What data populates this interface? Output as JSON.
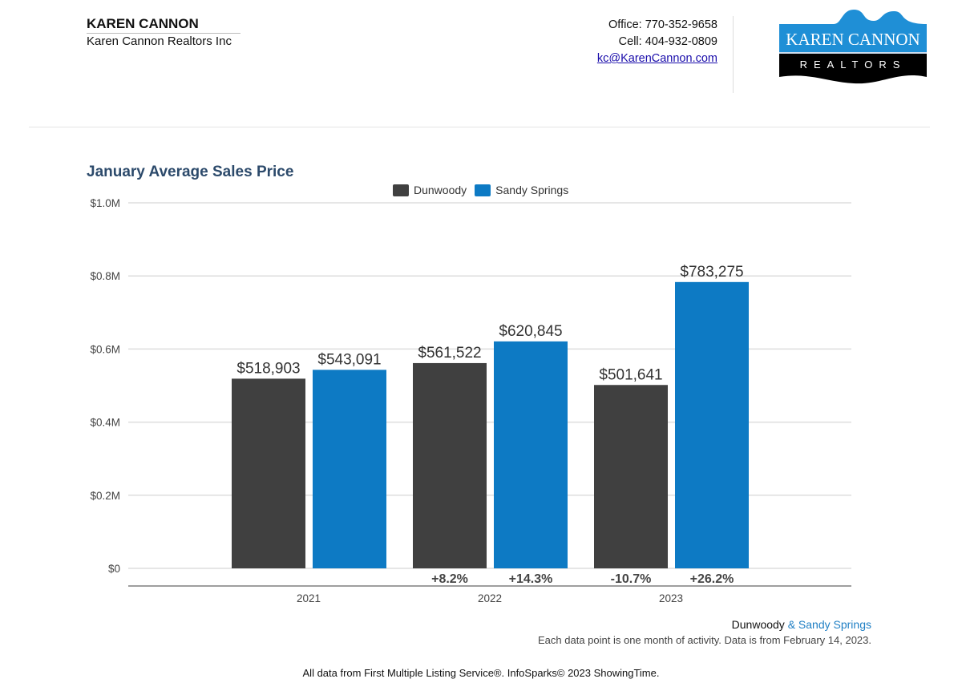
{
  "header": {
    "agent_name": "KAREN CANNON",
    "company": "Karen Cannon Realtors Inc",
    "office": "Office: 770-352-9658",
    "cell": "Cell: 404-932-0809",
    "email": "kc@KarenCannon.com",
    "logo": {
      "line1": "KAREN CANNON",
      "line2": "REALTORS"
    }
  },
  "colors": {
    "dunwoody": "#404040",
    "sandy_springs": "#0d7ac4",
    "title": "#2c4a6b"
  },
  "chart_data": {
    "type": "bar",
    "title": "January Average Sales Price",
    "categories": [
      "2021",
      "2022",
      "2023"
    ],
    "series": [
      {
        "name": "Dunwoody",
        "values": [
          518903,
          561522,
          501641
        ],
        "labels": [
          "$518,903",
          "$561,522",
          "$501,641"
        ],
        "changes": [
          "",
          "+8.2%",
          "-10.7%"
        ]
      },
      {
        "name": "Sandy Springs",
        "values": [
          543091,
          620845,
          783275
        ],
        "labels": [
          "$543,091",
          "$620,845",
          "$783,275"
        ],
        "changes": [
          "",
          "+14.3%",
          "+26.2%"
        ]
      }
    ],
    "ylim": [
      0,
      1000000
    ],
    "yticks": [
      {
        "v": 0,
        "label": "$0"
      },
      {
        "v": 200000,
        "label": "$0.2M"
      },
      {
        "v": 400000,
        "label": "$0.4M"
      },
      {
        "v": 600000,
        "label": "$0.6M"
      },
      {
        "v": 800000,
        "label": "$0.8M"
      },
      {
        "v": 1000000,
        "label": "$1.0M"
      }
    ],
    "legend": "top-center",
    "grid": true
  },
  "source": {
    "area_a": "Dunwoody",
    "area_b": "& Sandy Springs",
    "note": "Each data point is one month of activity. Data is from February 14, 2023."
  },
  "footer": "All data from First Multiple Listing Service®. InfoSparks© 2023 ShowingTime."
}
